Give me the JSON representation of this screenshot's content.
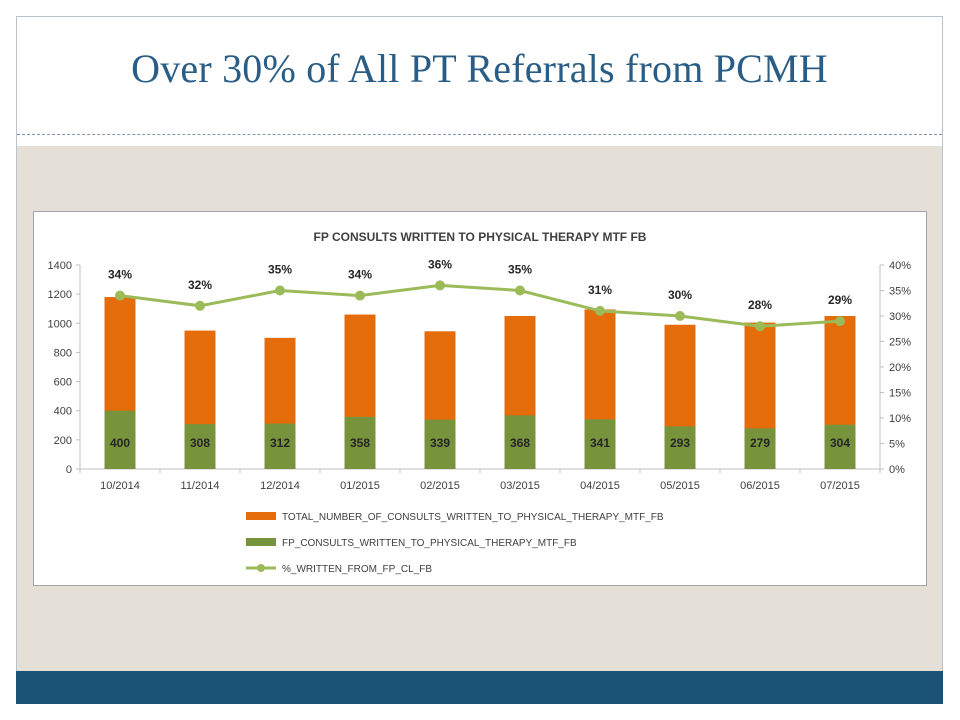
{
  "slide": {
    "title": "Over 30% of All PT Referrals from PCMH",
    "colors": {
      "title": "#2a5d85",
      "footer": "#1b5377",
      "content_bg": "#e5e0d7"
    }
  },
  "chart_data": {
    "type": "bar",
    "title": "FP CONSULTS WRITTEN TO PHYSICAL THERAPY MTF FB",
    "categories": [
      "10/2014",
      "11/2014",
      "12/2014",
      "01/2015",
      "02/2015",
      "03/2015",
      "04/2015",
      "05/2015",
      "06/2015",
      "07/2015"
    ],
    "series": [
      {
        "name": "TOTAL_NUMBER_OF_CONSULTS_WRITTEN_TO_PHYSICAL_THERAPY_MTF_FB",
        "type": "bar",
        "color": "#e46c0a",
        "values": [
          1180,
          950,
          900,
          1060,
          945,
          1050,
          1095,
          990,
          1005,
          1050
        ]
      },
      {
        "name": "FP_CONSULTS_WRITTEN_TO_PHYSICAL_THERAPY_MTF_FB",
        "type": "bar",
        "color": "#77933c",
        "values": [
          400,
          308,
          312,
          358,
          339,
          368,
          341,
          293,
          279,
          304
        ],
        "labels": [
          "400",
          "308",
          "312",
          "358",
          "339",
          "368",
          "341",
          "293",
          "279",
          "304"
        ]
      },
      {
        "name": "%_WRITTEN_FROM_FP_CL_FB",
        "type": "line",
        "axis": "secondary",
        "color": "#9bbb59",
        "values": [
          34,
          32,
          35,
          34,
          36,
          35,
          31,
          30,
          28,
          29
        ],
        "labels": [
          "34%",
          "32%",
          "35%",
          "34%",
          "36%",
          "35%",
          "31%",
          "30%",
          "28%",
          "29%"
        ]
      }
    ],
    "ylim": [
      0,
      1400
    ],
    "yticks": [
      "0",
      "200",
      "400",
      "600",
      "800",
      "1000",
      "1200",
      "1400"
    ],
    "y2lim": [
      0,
      40
    ],
    "y2ticks": [
      "0%",
      "5%",
      "10%",
      "15%",
      "20%",
      "25%",
      "30%",
      "35%",
      "40%"
    ],
    "grid": false,
    "legend": "bottom"
  }
}
